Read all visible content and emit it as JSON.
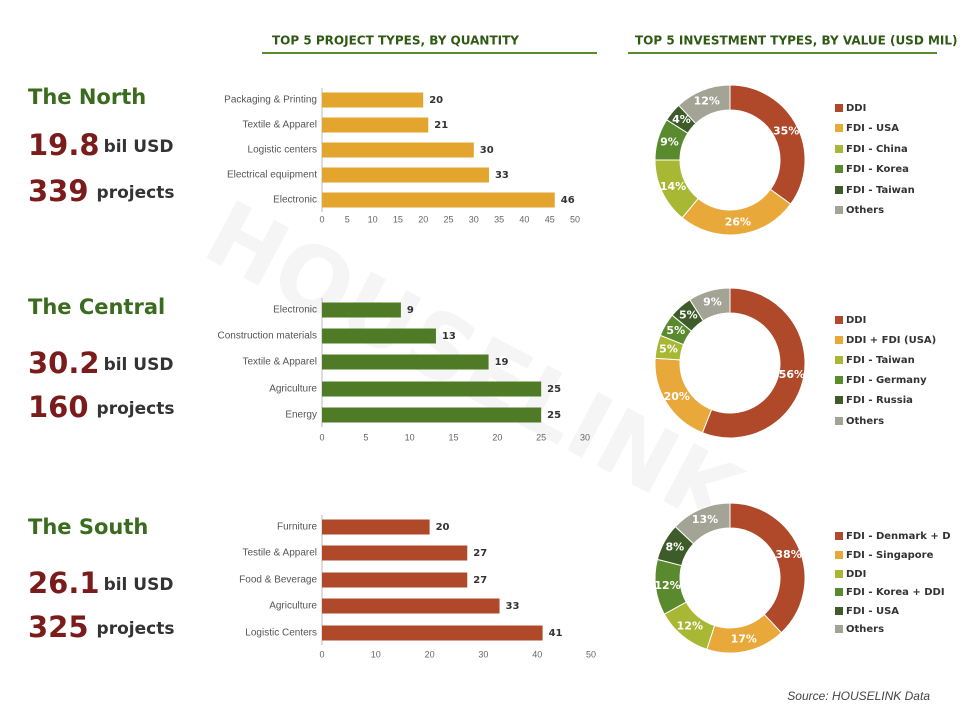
{
  "headers": {
    "bar": "TOP 5 PROJECT TYPES, BY QUANTITY",
    "donut": "TOP 5 INVESTMENT TYPES, BY VALUE (USD MIL)"
  },
  "regions": [
    {
      "name": "The North",
      "investment": 19.8,
      "investment_unit": "bil USD",
      "projects": 339,
      "projects_unit": "projects"
    },
    {
      "name": "The Central",
      "investment": 30.2,
      "investment_unit": "bil USD",
      "projects": 160,
      "projects_unit": "projects"
    },
    {
      "name": "The South",
      "investment": 26.1,
      "investment_unit": "bil USD",
      "projects": 325,
      "projects_unit": "projects"
    }
  ],
  "chart_data": [
    {
      "type": "hbar",
      "color": "#e3a52d",
      "categories": [
        "Packaging & Printing",
        "Textile & Apparel",
        "Logistic centers",
        "Electrical equipment",
        "Electronic"
      ],
      "values": [
        20,
        21,
        30,
        33,
        46
      ],
      "xlim": [
        0,
        50
      ],
      "xticks": [
        0,
        5,
        10,
        15,
        20,
        25,
        30,
        35,
        40,
        45,
        50
      ]
    },
    {
      "type": "donut",
      "categories": [
        "DDI",
        "FDI - USA",
        "FDI - China",
        "FDI - Korea",
        "FDI - Taiwan",
        "Others"
      ],
      "values": [
        35,
        26,
        14,
        9,
        4,
        12
      ],
      "value_labels": [
        "35%",
        "26%",
        "14%",
        "9%",
        "4%",
        "12%"
      ],
      "colors": [
        "#b0482a",
        "#e8a83a",
        "#a8b834",
        "#5a8a2e",
        "#3e5c2a",
        "#a3a396"
      ]
    },
    {
      "type": "hbar",
      "color": "#4f7b26",
      "categories": [
        "Electronic",
        "Construction materials",
        "Textile & Apparel",
        "Agriculture",
        "Energy"
      ],
      "values": [
        9,
        13,
        19,
        25,
        25
      ],
      "xlim": [
        0,
        30
      ],
      "xticks": [
        0,
        5,
        10,
        15,
        20,
        25,
        30
      ]
    },
    {
      "type": "donut",
      "categories": [
        "DDI",
        "DDI + FDI (USA)",
        "FDI - Taiwan",
        "FDI - Germany",
        "FDI - Russia",
        "Others"
      ],
      "values": [
        56,
        20,
        5,
        5,
        5,
        9
      ],
      "value_labels": [
        "56%",
        "20%",
        "5%",
        "5%",
        "5%",
        "9%"
      ],
      "colors": [
        "#b0482a",
        "#e8a83a",
        "#a8b834",
        "#5a8a2e",
        "#3e5c2a",
        "#a3a396"
      ]
    },
    {
      "type": "hbar",
      "color": "#b0482a",
      "categories": [
        "Furniture",
        "Testile & Apparel",
        "Food & Beverage",
        "Agriculture",
        "Logistic Centers"
      ],
      "values": [
        20,
        27,
        27,
        33,
        41
      ],
      "xlim": [
        0,
        50
      ],
      "xticks": [
        0,
        10,
        20,
        30,
        40,
        50
      ]
    },
    {
      "type": "donut",
      "categories": [
        "FDI - Denmark + D",
        "FDI - Singapore",
        "DDI",
        "FDI - Korea + DDI",
        "FDI - USA",
        "Others"
      ],
      "values": [
        38,
        17,
        12,
        12,
        8,
        13
      ],
      "value_labels": [
        "38%",
        "17%",
        "12%",
        "12%",
        "8%",
        "13%"
      ],
      "colors": [
        "#b0482a",
        "#e8a83a",
        "#a8b834",
        "#5a8a2e",
        "#3e5c2a",
        "#a3a396"
      ]
    }
  ],
  "watermark": "HOUSELINK",
  "source": "Source: HOUSELINK Data"
}
